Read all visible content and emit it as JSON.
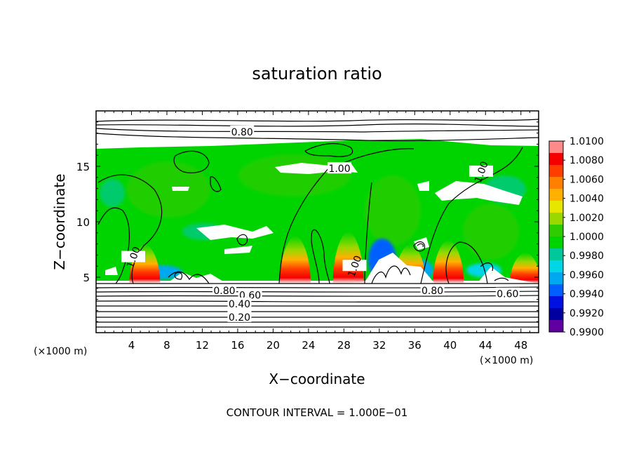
{
  "chart_data": {
    "type": "heatmap",
    "title": "saturation ratio",
    "xlabel": "X−coordinate",
    "ylabel": "Z−coordinate",
    "x_unit_left": "(×1000 m)",
    "x_unit_right": "(×1000 m)",
    "footer": "CONTOUR INTERVAL = 1.000E−01",
    "xlim": [
      0,
      50
    ],
    "ylim": [
      0,
      20
    ],
    "xticks": [
      4,
      8,
      12,
      16,
      20,
      24,
      28,
      32,
      36,
      40,
      44,
      48
    ],
    "yticks": [
      5,
      10,
      15
    ],
    "colorbar": {
      "min": 0.99,
      "max": 1.01,
      "labels": [
        "1.0100",
        "1.0080",
        "1.0060",
        "1.0040",
        "1.0020",
        "1.0000",
        "0.9980",
        "0.9960",
        "0.9940",
        "0.9920",
        "0.9900"
      ],
      "colors": [
        "#ff8a8a",
        "#f50000",
        "#ff3d00",
        "#ff7f00",
        "#ffb000",
        "#e6e600",
        "#9ad800",
        "#2ecc00",
        "#00d400",
        "#00c89a",
        "#00d6e6",
        "#00a8f0",
        "#0060ff",
        "#0010e0",
        "#0000a0",
        "#6000a0"
      ]
    },
    "contour_labels": [
      {
        "text": "0.80",
        "x": 16.5,
        "z": 18.1
      },
      {
        "text": "1.00",
        "x": 27.5,
        "z": 14.8
      },
      {
        "text": "1.00",
        "x": 43.5,
        "z": 14.5
      },
      {
        "text": "1.00",
        "x": 4.2,
        "z": 6.8
      },
      {
        "text": "1.00",
        "x": 29.2,
        "z": 6.0
      },
      {
        "text": "0.80",
        "x": 14.5,
        "z": 3.8
      },
      {
        "text": "0.60",
        "x": 17.4,
        "z": 3.4
      },
      {
        "text": "0.40",
        "x": 16.2,
        "z": 2.6
      },
      {
        "text": "0.20",
        "x": 16.2,
        "z": 1.4
      },
      {
        "text": "0.80",
        "x": 38.0,
        "z": 3.8
      },
      {
        "text": "0.60",
        "x": 46.5,
        "z": 3.5
      }
    ],
    "warm_peaks": [
      {
        "x": 5.5,
        "z": 4.6,
        "value": 1.006
      },
      {
        "x": 22.5,
        "z": 4.6,
        "value": 1.008
      },
      {
        "x": 28.5,
        "z": 4.8,
        "value": 1.009
      },
      {
        "x": 35.5,
        "z": 5.5,
        "value": 1.006
      },
      {
        "x": 39.8,
        "z": 4.6,
        "value": 1.007
      },
      {
        "x": 48.5,
        "z": 4.8,
        "value": 1.004
      }
    ]
  }
}
